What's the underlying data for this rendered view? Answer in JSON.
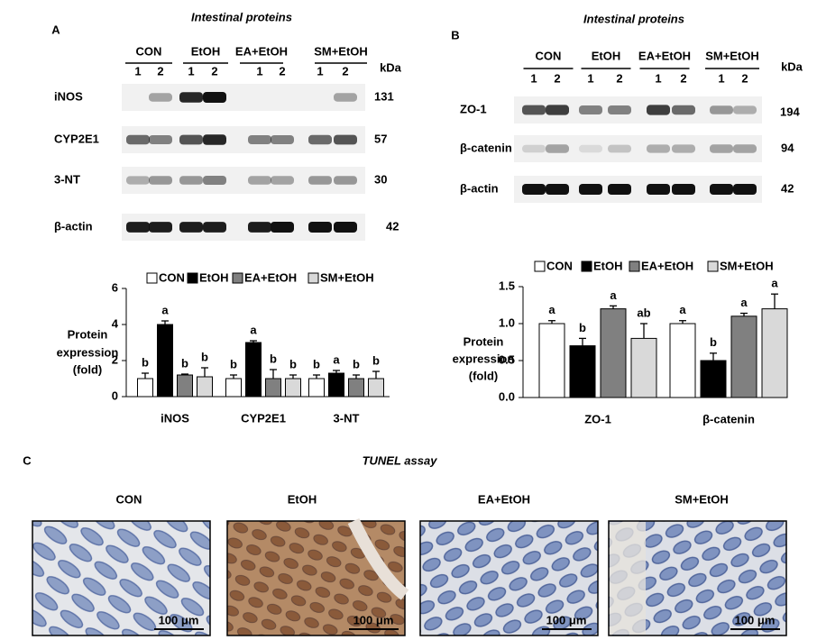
{
  "figure": {
    "panel_a": {
      "letter": "A",
      "title": "Intestinal proteins",
      "groups": [
        "CON",
        "EtOH",
        "EA+EtOH",
        "SM+EtOH"
      ],
      "lanes": [
        1,
        2,
        1,
        2,
        1,
        2,
        1,
        2
      ],
      "unit": "kDa",
      "proteins": [
        {
          "label": "iNOS",
          "kda": 131
        },
        {
          "label": "CYP2E1",
          "kda": 57
        },
        {
          "label": "3-NT",
          "kda": 30
        },
        {
          "label": "β-actin",
          "kda": 42
        }
      ]
    },
    "panel_b": {
      "letter": "B",
      "title": "Intestinal proteins",
      "groups": [
        "CON",
        "EtOH",
        "EA+EtOH",
        "SM+EtOH"
      ],
      "lanes": [
        1,
        2,
        1,
        2,
        1,
        2,
        1,
        2
      ],
      "unit": "kDa",
      "proteins": [
        {
          "label": "ZO-1",
          "kda": 194
        },
        {
          "label": "β-catenin",
          "kda": 94
        },
        {
          "label": "β-actin",
          "kda": 42
        }
      ]
    },
    "panel_c": {
      "letter": "C",
      "title": "TUNEL assay",
      "images": [
        {
          "label": "CON",
          "scale": "100 μm"
        },
        {
          "label": "EtOH",
          "scale": "100 μm"
        },
        {
          "label": "EA+EtOH",
          "scale": "100 μm"
        },
        {
          "label": "SM+EtOH",
          "scale": "100 μm"
        }
      ]
    }
  },
  "chart_data": [
    {
      "type": "bar",
      "y_label": [
        "Protein",
        "expression",
        "(fold)"
      ],
      "categories": [
        "iNOS",
        "CYP2E1",
        "3-NT"
      ],
      "ylim": [
        0,
        6
      ],
      "yticks": [
        0,
        2,
        4,
        6
      ],
      "series": [
        {
          "name": "CON",
          "color": "#ffffff",
          "values": [
            1.0,
            1.0,
            1.0
          ],
          "errors": [
            0.3,
            0.2,
            0.2
          ],
          "significance": [
            "b",
            "b",
            "b"
          ]
        },
        {
          "name": "EtOH",
          "color": "#000000",
          "values": [
            4.0,
            3.0,
            1.3
          ],
          "errors": [
            0.2,
            0.1,
            0.15
          ],
          "significance": [
            "a",
            "a",
            "a"
          ]
        },
        {
          "name": "EA+EtOH",
          "color": "#808080",
          "values": [
            1.2,
            1.0,
            1.0
          ],
          "errors": [
            0.05,
            0.5,
            0.2
          ],
          "significance": [
            "b",
            "b",
            "b"
          ]
        },
        {
          "name": "SM+EtOH",
          "color": "#d9d9d9",
          "values": [
            1.1,
            1.0,
            1.0
          ],
          "errors": [
            0.5,
            0.2,
            0.4
          ],
          "significance": [
            "b",
            "b",
            "b"
          ]
        }
      ]
    },
    {
      "type": "bar",
      "y_label": [
        "Protein",
        "expression",
        "(fold)"
      ],
      "categories": [
        "ZO-1",
        "β-catenin"
      ],
      "ylim": [
        0,
        1.5
      ],
      "yticks": [
        {
          "value": 0,
          "label": "0.0"
        },
        0.5,
        {
          "value": 1,
          "label": "1.0"
        },
        1.5
      ],
      "series": [
        {
          "name": "CON",
          "color": "#ffffff",
          "values": [
            1.0,
            1.0
          ],
          "errors": [
            0.04,
            0.04
          ],
          "significance": [
            "a",
            "a"
          ]
        },
        {
          "name": "EtOH",
          "color": "#000000",
          "values": [
            0.7,
            0.5
          ],
          "errors": [
            0.1,
            0.1
          ],
          "significance": [
            "b",
            "b"
          ]
        },
        {
          "name": "EA+EtOH",
          "color": "#808080",
          "values": [
            1.2,
            1.1
          ],
          "errors": [
            0.04,
            0.04
          ],
          "significance": [
            "a",
            "a"
          ]
        },
        {
          "name": "SM+EtOH",
          "color": "#d9d9d9",
          "values": [
            0.8,
            1.2
          ],
          "errors": [
            0.2,
            0.2
          ],
          "significance": [
            "ab",
            "a"
          ]
        }
      ]
    }
  ]
}
